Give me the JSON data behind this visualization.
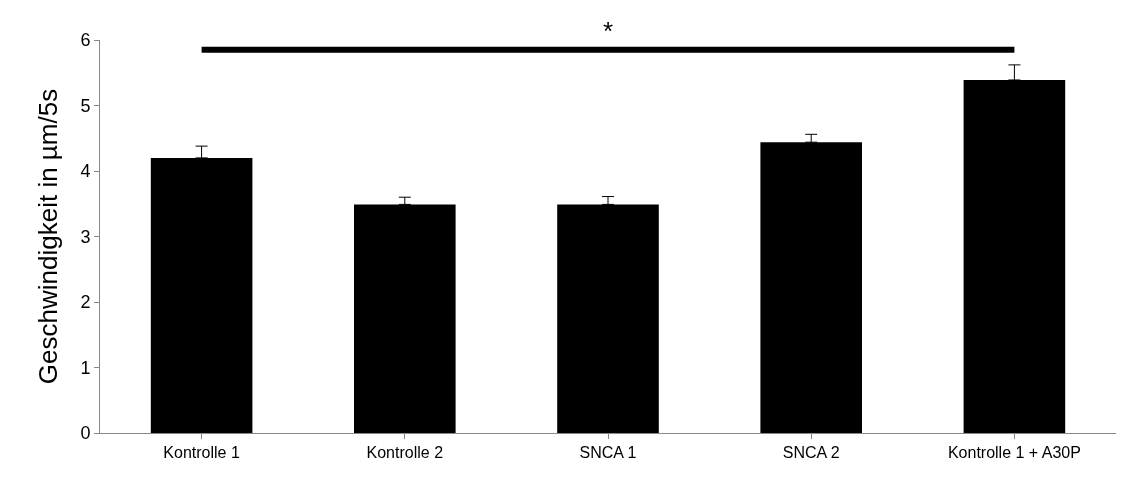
{
  "chart_data": {
    "type": "bar",
    "ylabel": "Geschwindigkeit in µm/5s",
    "categories": [
      "Kontrolle 1",
      "Kontrolle 2",
      "SNCA 1",
      "SNCA 2",
      "Kontrolle 1 + A30P"
    ],
    "values": [
      4.2,
      3.49,
      3.49,
      4.44,
      5.39
    ],
    "errors": [
      [
        4.2,
        4.38
      ],
      [
        3.49,
        3.6
      ],
      [
        3.49,
        3.61
      ],
      [
        4.44,
        4.56
      ],
      [
        5.39,
        5.62
      ]
    ],
    "color": "#000000",
    "ylim": [
      0,
      6
    ],
    "yticks": [
      0,
      1,
      2,
      3,
      4,
      5,
      6
    ],
    "ref_lines": [
      {
        "axis": "y",
        "value": 5.85,
        "label": "*",
        "color": "#000000"
      }
    ],
    "grid": false,
    "legend": false
  }
}
